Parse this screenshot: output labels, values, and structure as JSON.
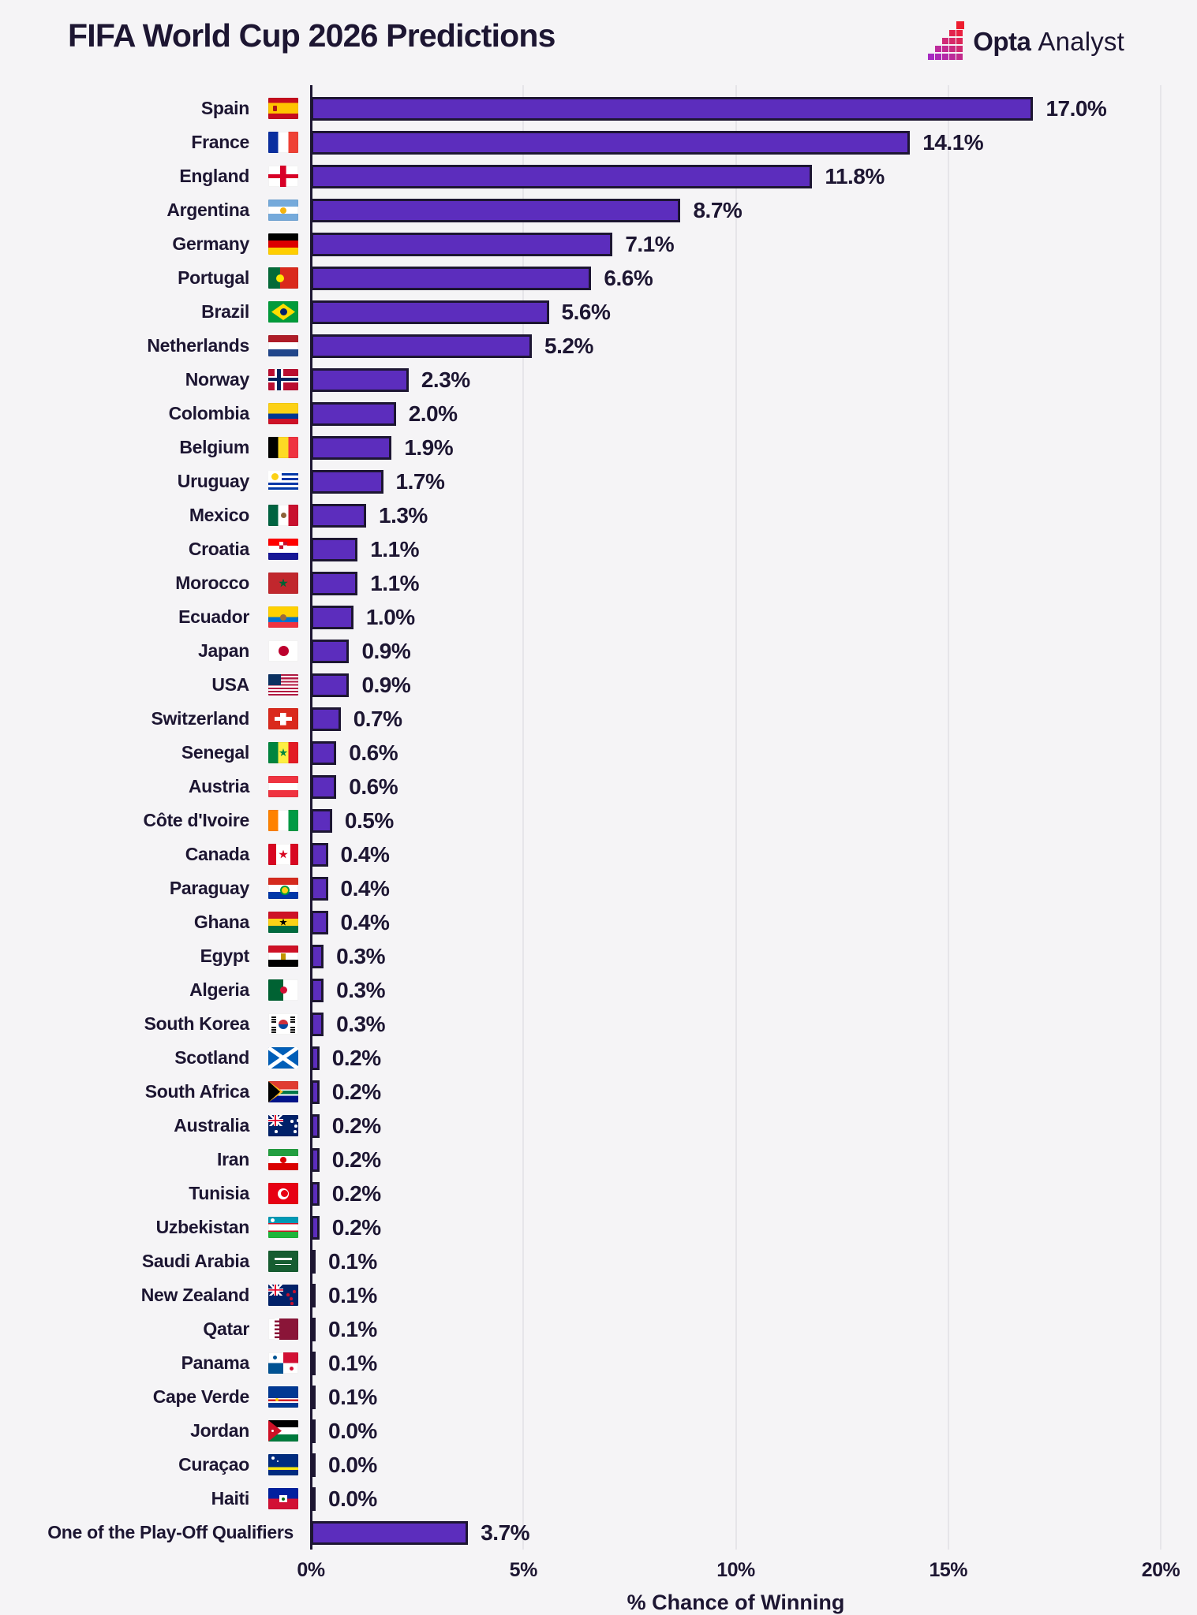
{
  "header": {
    "title": "FIFA World Cup 2026 Predictions",
    "brand": {
      "bold": "Opta",
      "light": "Analyst"
    }
  },
  "colors": {
    "background": "#f5f4f6",
    "ink": "#1d1632",
    "bar": "#5c2dbd",
    "grid": "#e6e5e9",
    "logo_red": "#ed2b3c",
    "logo_purple": "#a62ac2"
  },
  "chart_data": {
    "type": "bar",
    "title": "FIFA World Cup 2026 Predictions",
    "xlabel": "% Chance of Winning",
    "x_ticks": [
      "0%",
      "5%",
      "10%",
      "15%",
      "20%"
    ],
    "xlim": [
      0,
      20
    ],
    "grid": true,
    "legend": "none",
    "bar_color": "#5c2dbd",
    "bar_border_color": "#1d1632",
    "entries": [
      {
        "label": "Spain",
        "flag": "es",
        "value": 17.0,
        "value_label": "17.0%"
      },
      {
        "label": "France",
        "flag": "fr",
        "value": 14.1,
        "value_label": "14.1%"
      },
      {
        "label": "England",
        "flag": "en",
        "value": 11.8,
        "value_label": "11.8%"
      },
      {
        "label": "Argentina",
        "flag": "ar",
        "value": 8.7,
        "value_label": "8.7%"
      },
      {
        "label": "Germany",
        "flag": "de",
        "value": 7.1,
        "value_label": "7.1%"
      },
      {
        "label": "Portugal",
        "flag": "pt",
        "value": 6.6,
        "value_label": "6.6%"
      },
      {
        "label": "Brazil",
        "flag": "br",
        "value": 5.6,
        "value_label": "5.6%"
      },
      {
        "label": "Netherlands",
        "flag": "nl",
        "value": 5.2,
        "value_label": "5.2%"
      },
      {
        "label": "Norway",
        "flag": "no",
        "value": 2.3,
        "value_label": "2.3%"
      },
      {
        "label": "Colombia",
        "flag": "co",
        "value": 2.0,
        "value_label": "2.0%"
      },
      {
        "label": "Belgium",
        "flag": "be",
        "value": 1.9,
        "value_label": "1.9%"
      },
      {
        "label": "Uruguay",
        "flag": "uy",
        "value": 1.7,
        "value_label": "1.7%"
      },
      {
        "label": "Mexico",
        "flag": "mx",
        "value": 1.3,
        "value_label": "1.3%"
      },
      {
        "label": "Croatia",
        "flag": "hr",
        "value": 1.1,
        "value_label": "1.1%"
      },
      {
        "label": "Morocco",
        "flag": "ma",
        "value": 1.1,
        "value_label": "1.1%"
      },
      {
        "label": "Ecuador",
        "flag": "ec",
        "value": 1.0,
        "value_label": "1.0%"
      },
      {
        "label": "Japan",
        "flag": "jp",
        "value": 0.9,
        "value_label": "0.9%"
      },
      {
        "label": "USA",
        "flag": "us",
        "value": 0.9,
        "value_label": "0.9%"
      },
      {
        "label": "Switzerland",
        "flag": "ch",
        "value": 0.7,
        "value_label": "0.7%"
      },
      {
        "label": "Senegal",
        "flag": "sn",
        "value": 0.6,
        "value_label": "0.6%"
      },
      {
        "label": "Austria",
        "flag": "at",
        "value": 0.6,
        "value_label": "0.6%"
      },
      {
        "label": "Côte d'Ivoire",
        "flag": "ci",
        "value": 0.5,
        "value_label": "0.5%"
      },
      {
        "label": "Canada",
        "flag": "ca",
        "value": 0.4,
        "value_label": "0.4%"
      },
      {
        "label": "Paraguay",
        "flag": "py",
        "value": 0.4,
        "value_label": "0.4%"
      },
      {
        "label": "Ghana",
        "flag": "gh",
        "value": 0.4,
        "value_label": "0.4%"
      },
      {
        "label": "Egypt",
        "flag": "eg",
        "value": 0.3,
        "value_label": "0.3%"
      },
      {
        "label": "Algeria",
        "flag": "dz",
        "value": 0.3,
        "value_label": "0.3%"
      },
      {
        "label": "South Korea",
        "flag": "kr",
        "value": 0.3,
        "value_label": "0.3%"
      },
      {
        "label": "Scotland",
        "flag": "sct",
        "value": 0.2,
        "value_label": "0.2%"
      },
      {
        "label": "South Africa",
        "flag": "za",
        "value": 0.2,
        "value_label": "0.2%"
      },
      {
        "label": "Australia",
        "flag": "au",
        "value": 0.2,
        "value_label": "0.2%"
      },
      {
        "label": "Iran",
        "flag": "ir",
        "value": 0.2,
        "value_label": "0.2%"
      },
      {
        "label": "Tunisia",
        "flag": "tn",
        "value": 0.2,
        "value_label": "0.2%"
      },
      {
        "label": "Uzbekistan",
        "flag": "uz",
        "value": 0.2,
        "value_label": "0.2%"
      },
      {
        "label": "Saudi Arabia",
        "flag": "sa",
        "value": 0.1,
        "value_label": "0.1%"
      },
      {
        "label": "New Zealand",
        "flag": "nz",
        "value": 0.1,
        "value_label": "0.1%"
      },
      {
        "label": "Qatar",
        "flag": "qa",
        "value": 0.1,
        "value_label": "0.1%"
      },
      {
        "label": "Panama",
        "flag": "pa",
        "value": 0.1,
        "value_label": "0.1%"
      },
      {
        "label": "Cape Verde",
        "flag": "cv",
        "value": 0.1,
        "value_label": "0.1%"
      },
      {
        "label": "Jordan",
        "flag": "jo",
        "value": 0.0,
        "value_label": "0.0%"
      },
      {
        "label": "Curaçao",
        "flag": "cw",
        "value": 0.0,
        "value_label": "0.0%"
      },
      {
        "label": "Haiti",
        "flag": "ht",
        "value": 0.0,
        "value_label": "0.0%"
      },
      {
        "label": "One of the Play-Off Qualifiers",
        "flag": null,
        "value": 3.7,
        "value_label": "3.7%"
      }
    ]
  }
}
